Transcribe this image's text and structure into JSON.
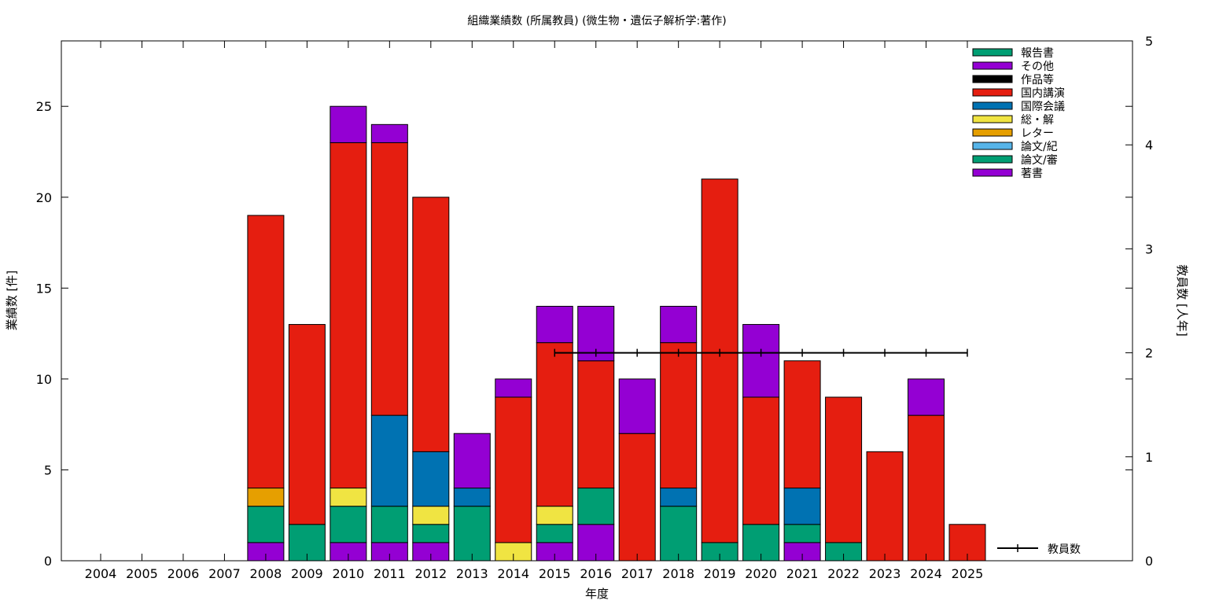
{
  "chart_data": {
    "type": "bar",
    "stacked": true,
    "title": "組織業績数 (所属教員) (微生物・遺伝子解析学:著作)",
    "xlabel": "年度",
    "ylabel": "業績数 [件]",
    "y2label": "教員数 [人年]",
    "ylim": [
      0,
      28.6
    ],
    "y2lim": [
      0,
      5
    ],
    "yticks": [
      0,
      5,
      10,
      15,
      20,
      25
    ],
    "y2ticks": [
      0,
      1,
      2,
      3,
      4,
      5
    ],
    "grid": false,
    "legend_position": "top-right",
    "categories": [
      "2004",
      "2005",
      "2006",
      "2007",
      "2008",
      "2009",
      "2010",
      "2011",
      "2012",
      "2013",
      "2014",
      "2015",
      "2016",
      "2017",
      "2018",
      "2019",
      "2020",
      "2021",
      "2022",
      "2023",
      "2024",
      "2025"
    ],
    "legend_order": [
      "報告書",
      "その他",
      "作品等",
      "国内講演",
      "国際会議",
      "総・解",
      "レター",
      "論文/紀",
      "論文/審",
      "著書"
    ],
    "series": [
      {
        "name": "著書",
        "color": "#9400d3",
        "values": [
          0,
          0,
          0,
          0,
          1,
          0,
          1,
          1,
          1,
          0,
          0,
          1,
          2,
          0,
          0,
          0,
          0,
          1,
          0,
          0,
          0,
          0
        ]
      },
      {
        "name": "論文/審",
        "color": "#009e73",
        "values": [
          0,
          0,
          0,
          0,
          2,
          2,
          2,
          2,
          1,
          3,
          0,
          1,
          2,
          0,
          3,
          1,
          2,
          1,
          1,
          0,
          0,
          0
        ]
      },
      {
        "name": "論文/紀",
        "color": "#56b4e9",
        "values": [
          0,
          0,
          0,
          0,
          0,
          0,
          0,
          0,
          0,
          0,
          0,
          0,
          0,
          0,
          0,
          0,
          0,
          0,
          0,
          0,
          0,
          0
        ]
      },
      {
        "name": "レター",
        "color": "#e69f00",
        "values": [
          0,
          0,
          0,
          0,
          1,
          0,
          0,
          0,
          0,
          0,
          0,
          0,
          0,
          0,
          0,
          0,
          0,
          0,
          0,
          0,
          0,
          0
        ]
      },
      {
        "name": "総・解",
        "color": "#f0e442",
        "values": [
          0,
          0,
          0,
          0,
          0,
          0,
          1,
          0,
          1,
          0,
          1,
          1,
          0,
          0,
          0,
          0,
          0,
          0,
          0,
          0,
          0,
          0
        ]
      },
      {
        "name": "国際会議",
        "color": "#0072b2",
        "values": [
          0,
          0,
          0,
          0,
          0,
          0,
          0,
          5,
          3,
          1,
          0,
          0,
          0,
          0,
          1,
          0,
          0,
          2,
          0,
          0,
          0,
          0
        ]
      },
      {
        "name": "国内講演",
        "color": "#e51e10",
        "values": [
          0,
          0,
          0,
          0,
          15,
          11,
          19,
          15,
          14,
          0,
          8,
          9,
          7,
          7,
          8,
          20,
          7,
          7,
          8,
          6,
          8,
          2
        ]
      },
      {
        "name": "作品等",
        "color": "#000000",
        "values": [
          0,
          0,
          0,
          0,
          0,
          0,
          0,
          0,
          0,
          0,
          0,
          0,
          0,
          0,
          0,
          0,
          0,
          0,
          0,
          0,
          0,
          0
        ]
      },
      {
        "name": "その他",
        "color": "#9400d3",
        "values": [
          0,
          0,
          0,
          0,
          0,
          0,
          2,
          1,
          0,
          3,
          1,
          2,
          3,
          3,
          2,
          0,
          4,
          0,
          0,
          0,
          2,
          0
        ]
      },
      {
        "name": "報告書",
        "color": "#009e73",
        "values": [
          0,
          0,
          0,
          0,
          0,
          0,
          0,
          0,
          0,
          0,
          0,
          0,
          0,
          0,
          0,
          0,
          0,
          0,
          0,
          0,
          0,
          0
        ]
      }
    ],
    "line_series": {
      "name": "教員数",
      "axis": "y2",
      "color": "#000000",
      "x": [
        "2015",
        "2016",
        "2017",
        "2018",
        "2019",
        "2020",
        "2021",
        "2022",
        "2023",
        "2024",
        "2025"
      ],
      "values": [
        2,
        2,
        2,
        2,
        2,
        2,
        2,
        2,
        2,
        2,
        2
      ]
    }
  }
}
